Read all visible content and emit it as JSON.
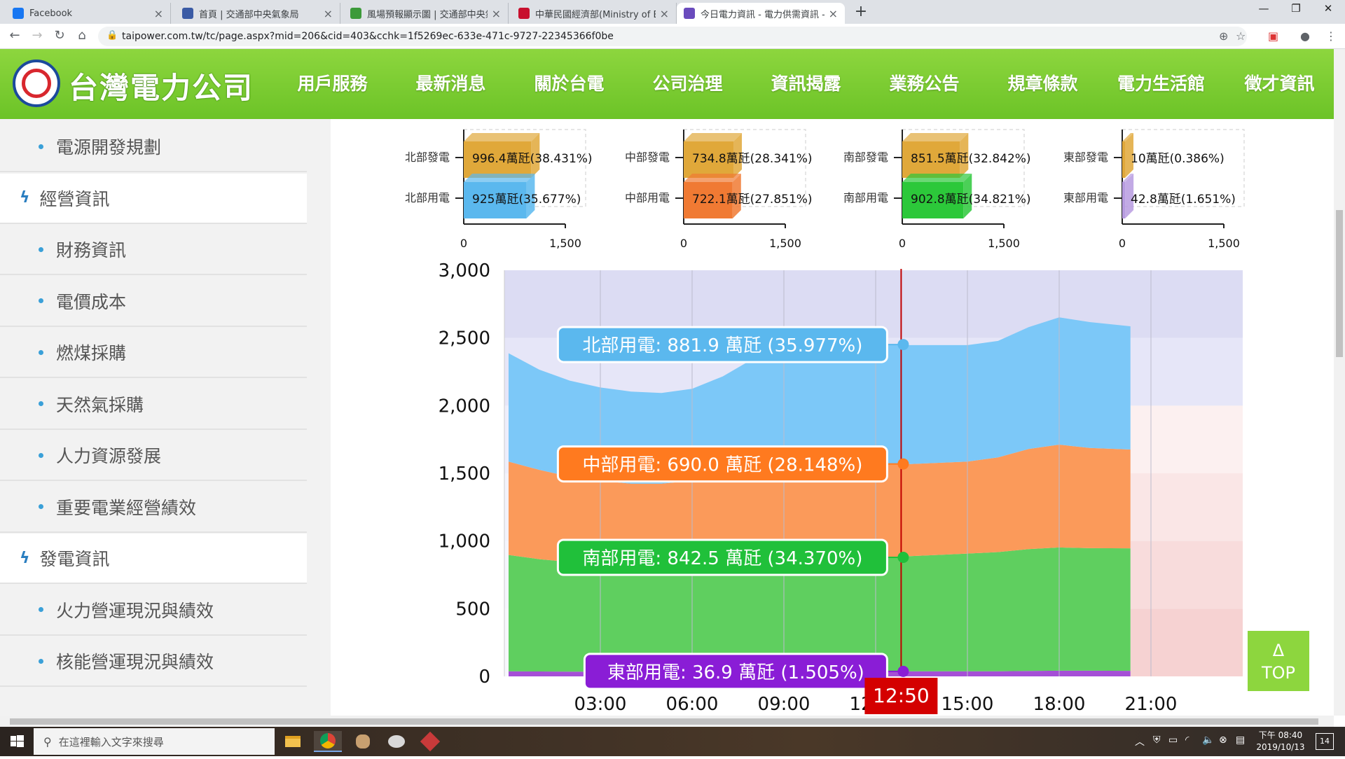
{
  "browser": {
    "tabs": [
      {
        "title": "Facebook",
        "favicon_color": "#1877f2",
        "active": false
      },
      {
        "title": "首頁 | 交通部中央氣象局",
        "favicon_color": "#3b5ba5",
        "active": false
      },
      {
        "title": "風場預報顯示圖 | 交通部中央氣象局",
        "favicon_color": "#3c9a3a",
        "active": false
      },
      {
        "title": "中華民國經濟部(Ministry of Econ",
        "favicon_color": "#c8102e",
        "active": false
      },
      {
        "title": "今日電力資訊 - 電力供需資訊 - 資",
        "favicon_color": "#6a4bbd",
        "active": true
      }
    ],
    "url": "taipower.com.tw/tc/page.aspx?mid=206&cid=403&cchk=1f5269ec-633e-471c-9727-22345366f0be"
  },
  "site": {
    "logo_text": "台灣電力公司",
    "nav": [
      "用戶服務",
      "最新消息",
      "關於台電",
      "公司治理",
      "資訊揭露",
      "業務公告",
      "規章條款",
      "電力生活館",
      "徵才資訊"
    ]
  },
  "sidebar": {
    "items": [
      {
        "label": "電源開發規劃",
        "type": "sub"
      },
      {
        "label": "經營資訊",
        "type": "head"
      },
      {
        "label": "財務資訊",
        "type": "sub"
      },
      {
        "label": "電價成本",
        "type": "sub"
      },
      {
        "label": "燃煤採購",
        "type": "sub"
      },
      {
        "label": "天然氣採購",
        "type": "sub"
      },
      {
        "label": "人力資源發展",
        "type": "sub"
      },
      {
        "label": "重要電業經營績效",
        "type": "sub"
      },
      {
        "label": "發電資訊",
        "type": "head"
      },
      {
        "label": "火力營運現況與績效",
        "type": "sub"
      },
      {
        "label": "核能營運現況與績效",
        "type": "sub"
      }
    ]
  },
  "chart_data": [
    {
      "type": "bar",
      "regions": [
        {
          "gen_label": "北部發電",
          "use_label": "北部用電",
          "gen_value": 996.4,
          "gen_pct": "38.431%",
          "use_value": 925,
          "use_pct": "35.677%",
          "gen_color": "#e0a83a",
          "use_color": "#5bb8ee"
        },
        {
          "gen_label": "中部發電",
          "use_label": "中部用電",
          "gen_value": 734.8,
          "gen_pct": "28.341%",
          "use_value": 722.1,
          "use_pct": "27.851%",
          "gen_color": "#e0a83a",
          "use_color": "#f07a33"
        },
        {
          "gen_label": "南部發電",
          "use_label": "南部用電",
          "gen_value": 851.5,
          "gen_pct": "32.842%",
          "use_value": 902.8,
          "use_pct": "34.821%",
          "gen_color": "#e0a83a",
          "use_color": "#2cc83a"
        },
        {
          "gen_label": "東部發電",
          "use_label": "東部用電",
          "gen_value": 10,
          "gen_pct": "0.386%",
          "use_value": 42.8,
          "use_pct": "1.651%",
          "gen_color": "#e0a83a",
          "use_color": "#b79be0"
        }
      ],
      "unit": "萬瓩",
      "xlim": [
        0,
        1500
      ],
      "ticks": [
        "0",
        "1,500"
      ]
    },
    {
      "type": "area",
      "stacked": true,
      "ylim": [
        0,
        3000
      ],
      "yticks": [
        "0",
        "500",
        "1,000",
        "1,500",
        "2,000",
        "2,500",
        "3,000"
      ],
      "xticks": [
        "03:00",
        "06:00",
        "09:00",
        "12:00",
        "15:00",
        "18:00",
        "21:00"
      ],
      "x_hours": [
        0,
        1,
        2,
        3,
        4,
        5,
        6,
        7,
        8,
        9,
        10,
        11,
        12,
        12.83,
        13,
        14,
        15,
        16,
        17,
        18,
        19,
        20.33
      ],
      "series": [
        {
          "name": "東部用電",
          "color": "#a54fd6",
          "values": [
            37,
            36,
            35,
            34,
            34,
            34,
            35,
            36,
            37,
            37,
            37,
            37,
            37,
            36.9,
            37,
            37,
            37,
            38,
            40,
            42,
            42,
            41
          ]
        },
        {
          "name": "南部用電",
          "color": "#5fcf5f",
          "values": [
            860,
            830,
            810,
            800,
            790,
            790,
            800,
            820,
            850,
            870,
            880,
            870,
            845,
            842.5,
            850,
            860,
            870,
            880,
            900,
            910,
            905,
            905
          ]
        },
        {
          "name": "中部用電",
          "color": "#fb9a5a",
          "values": [
            690,
            660,
            630,
            610,
            600,
            600,
            610,
            630,
            660,
            690,
            710,
            700,
            690,
            690.0,
            680,
            680,
            680,
            700,
            740,
            760,
            740,
            730
          ]
        },
        {
          "name": "北部用電",
          "color": "#7cc8f8",
          "values": [
            800,
            740,
            710,
            690,
            680,
            670,
            680,
            730,
            800,
            850,
            880,
            890,
            885,
            881.9,
            880,
            870,
            860,
            860,
            900,
            940,
            930,
            910
          ]
        }
      ],
      "cursor_time": "12:50",
      "tooltips": [
        {
          "text": "北部用電: 881.9 萬瓩 (35.977%)",
          "color": "#5bb8ee",
          "value": 2451.3
        },
        {
          "text": "中部用電: 690.0 萬瓩 (28.148%)",
          "color": "#ff7a1f",
          "value": 1569.4
        },
        {
          "text": "南部用電: 842.5 萬瓩 (34.370%)",
          "color": "#20c03a",
          "value": 879.4
        },
        {
          "text": "東部用電: 36.9 萬瓩 (1.505%)",
          "color": "#8a1dd6",
          "value": 36.9
        }
      ]
    }
  ],
  "top_button": {
    "arrow": "Δ",
    "label": "TOP"
  },
  "taskbar": {
    "search_placeholder": "在這裡輸入文字來搜尋",
    "time": "下午 08:40",
    "date": "2019/10/13",
    "notification_count": "14"
  }
}
